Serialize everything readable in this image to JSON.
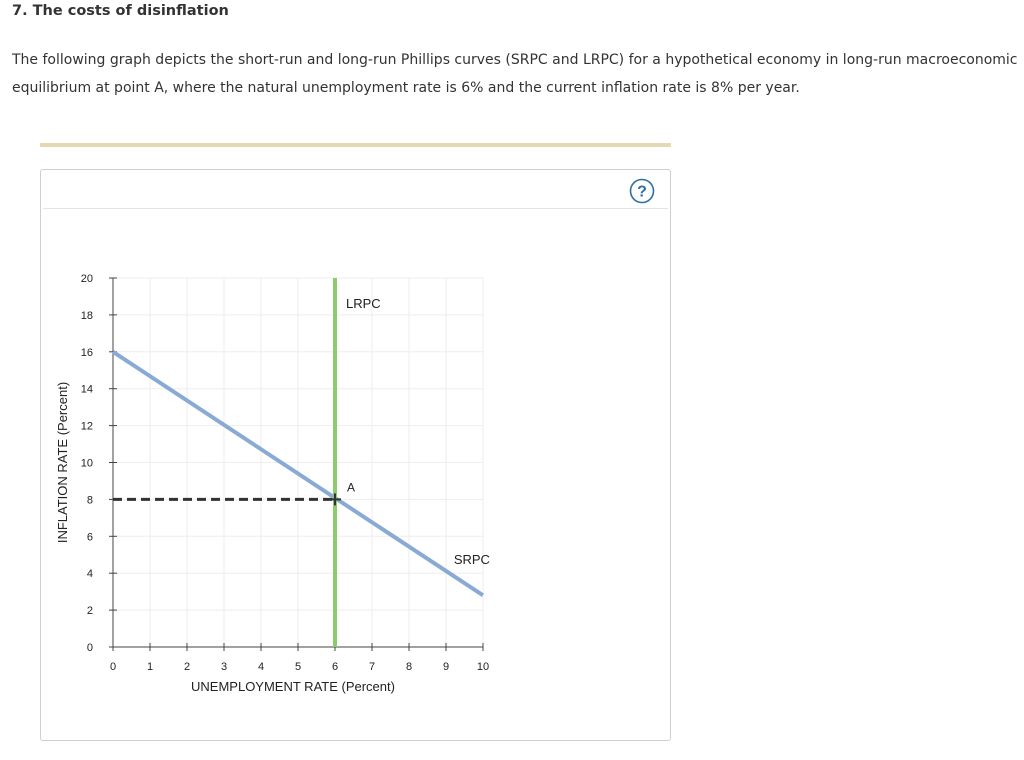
{
  "header": {
    "title": "7. The costs of disinflation",
    "intro": "The following graph depicts the short-run and long-run Phillips curves (SRPC and LRPC) for a hypothetical economy in long-run macroeconomic equilibrium at point A, where the natural unemployment rate is 6% and the current inflation rate is 8% per year."
  },
  "help": {
    "icon": "question-circle-icon",
    "glyph": "?",
    "color": "#2f6ea5"
  },
  "colors": {
    "srpc": "#8aaad6",
    "lrpc": "#8ccc6a",
    "dashed": "#333333",
    "grid": "#eeeeee",
    "divider": "#e5d9b4"
  },
  "chart_data": {
    "type": "line",
    "xlabel": "UNEMPLOYMENT RATE (Percent)",
    "ylabel": "INFLATION RATE (Percent)",
    "xlim": [
      0,
      10
    ],
    "ylim": [
      0,
      20
    ],
    "xticks": [
      0,
      1,
      2,
      3,
      4,
      5,
      6,
      7,
      8,
      9,
      10
    ],
    "yticks": [
      0,
      2,
      4,
      6,
      8,
      10,
      12,
      14,
      16,
      18,
      20
    ],
    "grid": true,
    "series": [
      {
        "name": "SRPC",
        "kind": "line",
        "x": [
          0,
          10
        ],
        "y": [
          16,
          2.8
        ]
      },
      {
        "name": "LRPC",
        "kind": "vertical",
        "x": [
          6,
          6
        ],
        "y": [
          0,
          20
        ]
      }
    ],
    "guides": [
      {
        "kind": "dashed-horizontal",
        "y": 8,
        "x_from": 0,
        "x_to": 6
      }
    ],
    "points": [
      {
        "label": "A",
        "x": 6,
        "y": 8
      }
    ]
  }
}
